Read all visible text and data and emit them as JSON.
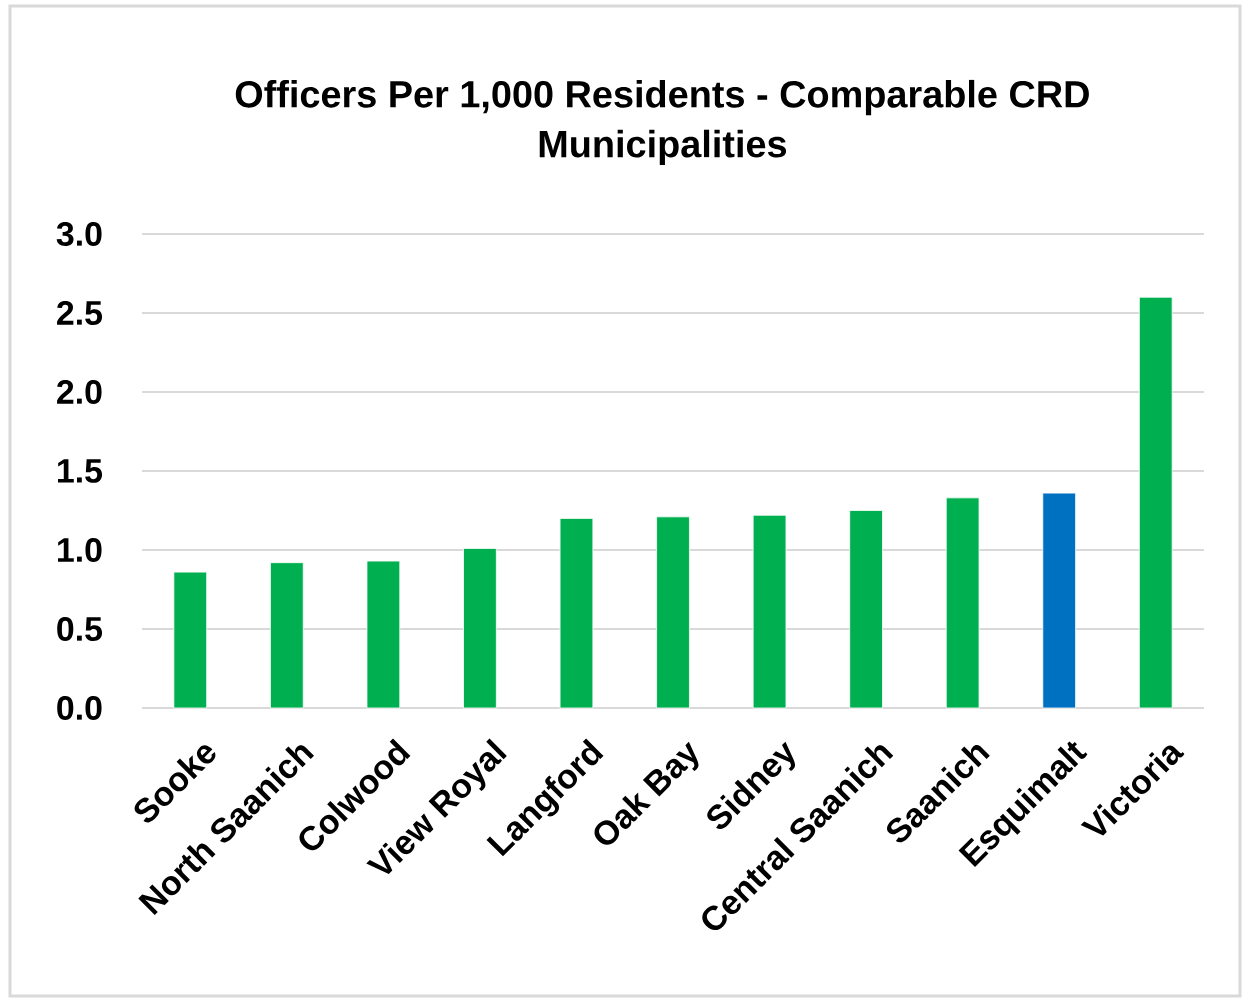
{
  "chart_data": {
    "type": "bar",
    "title": "Officers Per 1,000 Residents - Comparable CRD Municipalities",
    "categories": [
      "Sooke",
      "North Saanich",
      "Colwood",
      "View Royal",
      "Langford",
      "Oak Bay",
      "Sidney",
      "Central Saanich",
      "Saanich",
      "Esquimalt",
      "Victoria"
    ],
    "values": [
      0.86,
      0.92,
      0.93,
      1.01,
      1.2,
      1.21,
      1.22,
      1.25,
      1.33,
      1.36,
      2.6
    ],
    "colors": [
      "#00b050",
      "#00b050",
      "#00b050",
      "#00b050",
      "#00b050",
      "#00b050",
      "#00b050",
      "#00b050",
      "#00b050",
      "#0070c0",
      "#00b050"
    ],
    "ylim": [
      0,
      3
    ],
    "yticks": [
      {
        "value": 0,
        "label": "0.0"
      },
      0.5,
      {
        "value": 1,
        "label": "1.0"
      },
      1.5,
      {
        "value": 2,
        "label": "2.0"
      },
      2.5,
      {
        "value": 3,
        "label": "3.0"
      }
    ],
    "grid": "y"
  }
}
